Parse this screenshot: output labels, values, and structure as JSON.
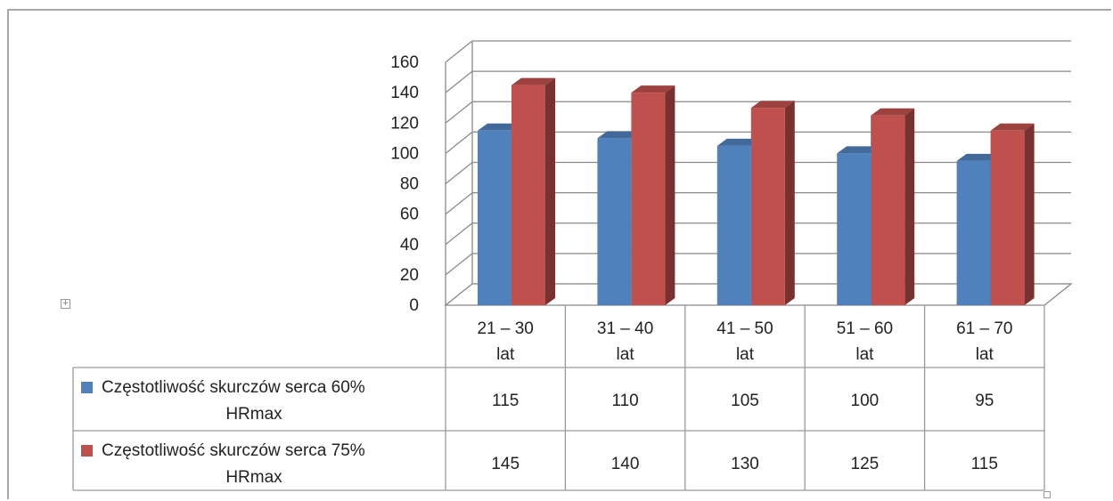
{
  "chart_data": {
    "type": "bar",
    "variant": "3d-clustered-with-data-table",
    "categories": [
      [
        "21 – 30",
        "lat"
      ],
      [
        "31 – 40",
        "lat"
      ],
      [
        "41 – 50",
        "lat"
      ],
      [
        "51 – 60",
        "lat"
      ],
      [
        "61 – 70",
        "lat"
      ]
    ],
    "series": [
      {
        "name": [
          "Częstotliwość skurczów serca 60%",
          "HRmax"
        ],
        "values": [
          115,
          110,
          105,
          100,
          95
        ],
        "color": "#4f81bd"
      },
      {
        "name": [
          "Częstotliwość skurczów serca 75%",
          "HRmax"
        ],
        "values": [
          145,
          140,
          130,
          125,
          115
        ],
        "color": "#c0504d"
      }
    ],
    "ylim": [
      0,
      160
    ],
    "yticks": [
      "0",
      "20",
      "40",
      "60",
      "80",
      "100",
      "120",
      "140",
      "160"
    ],
    "grid": true,
    "legend": "data-table-left"
  }
}
